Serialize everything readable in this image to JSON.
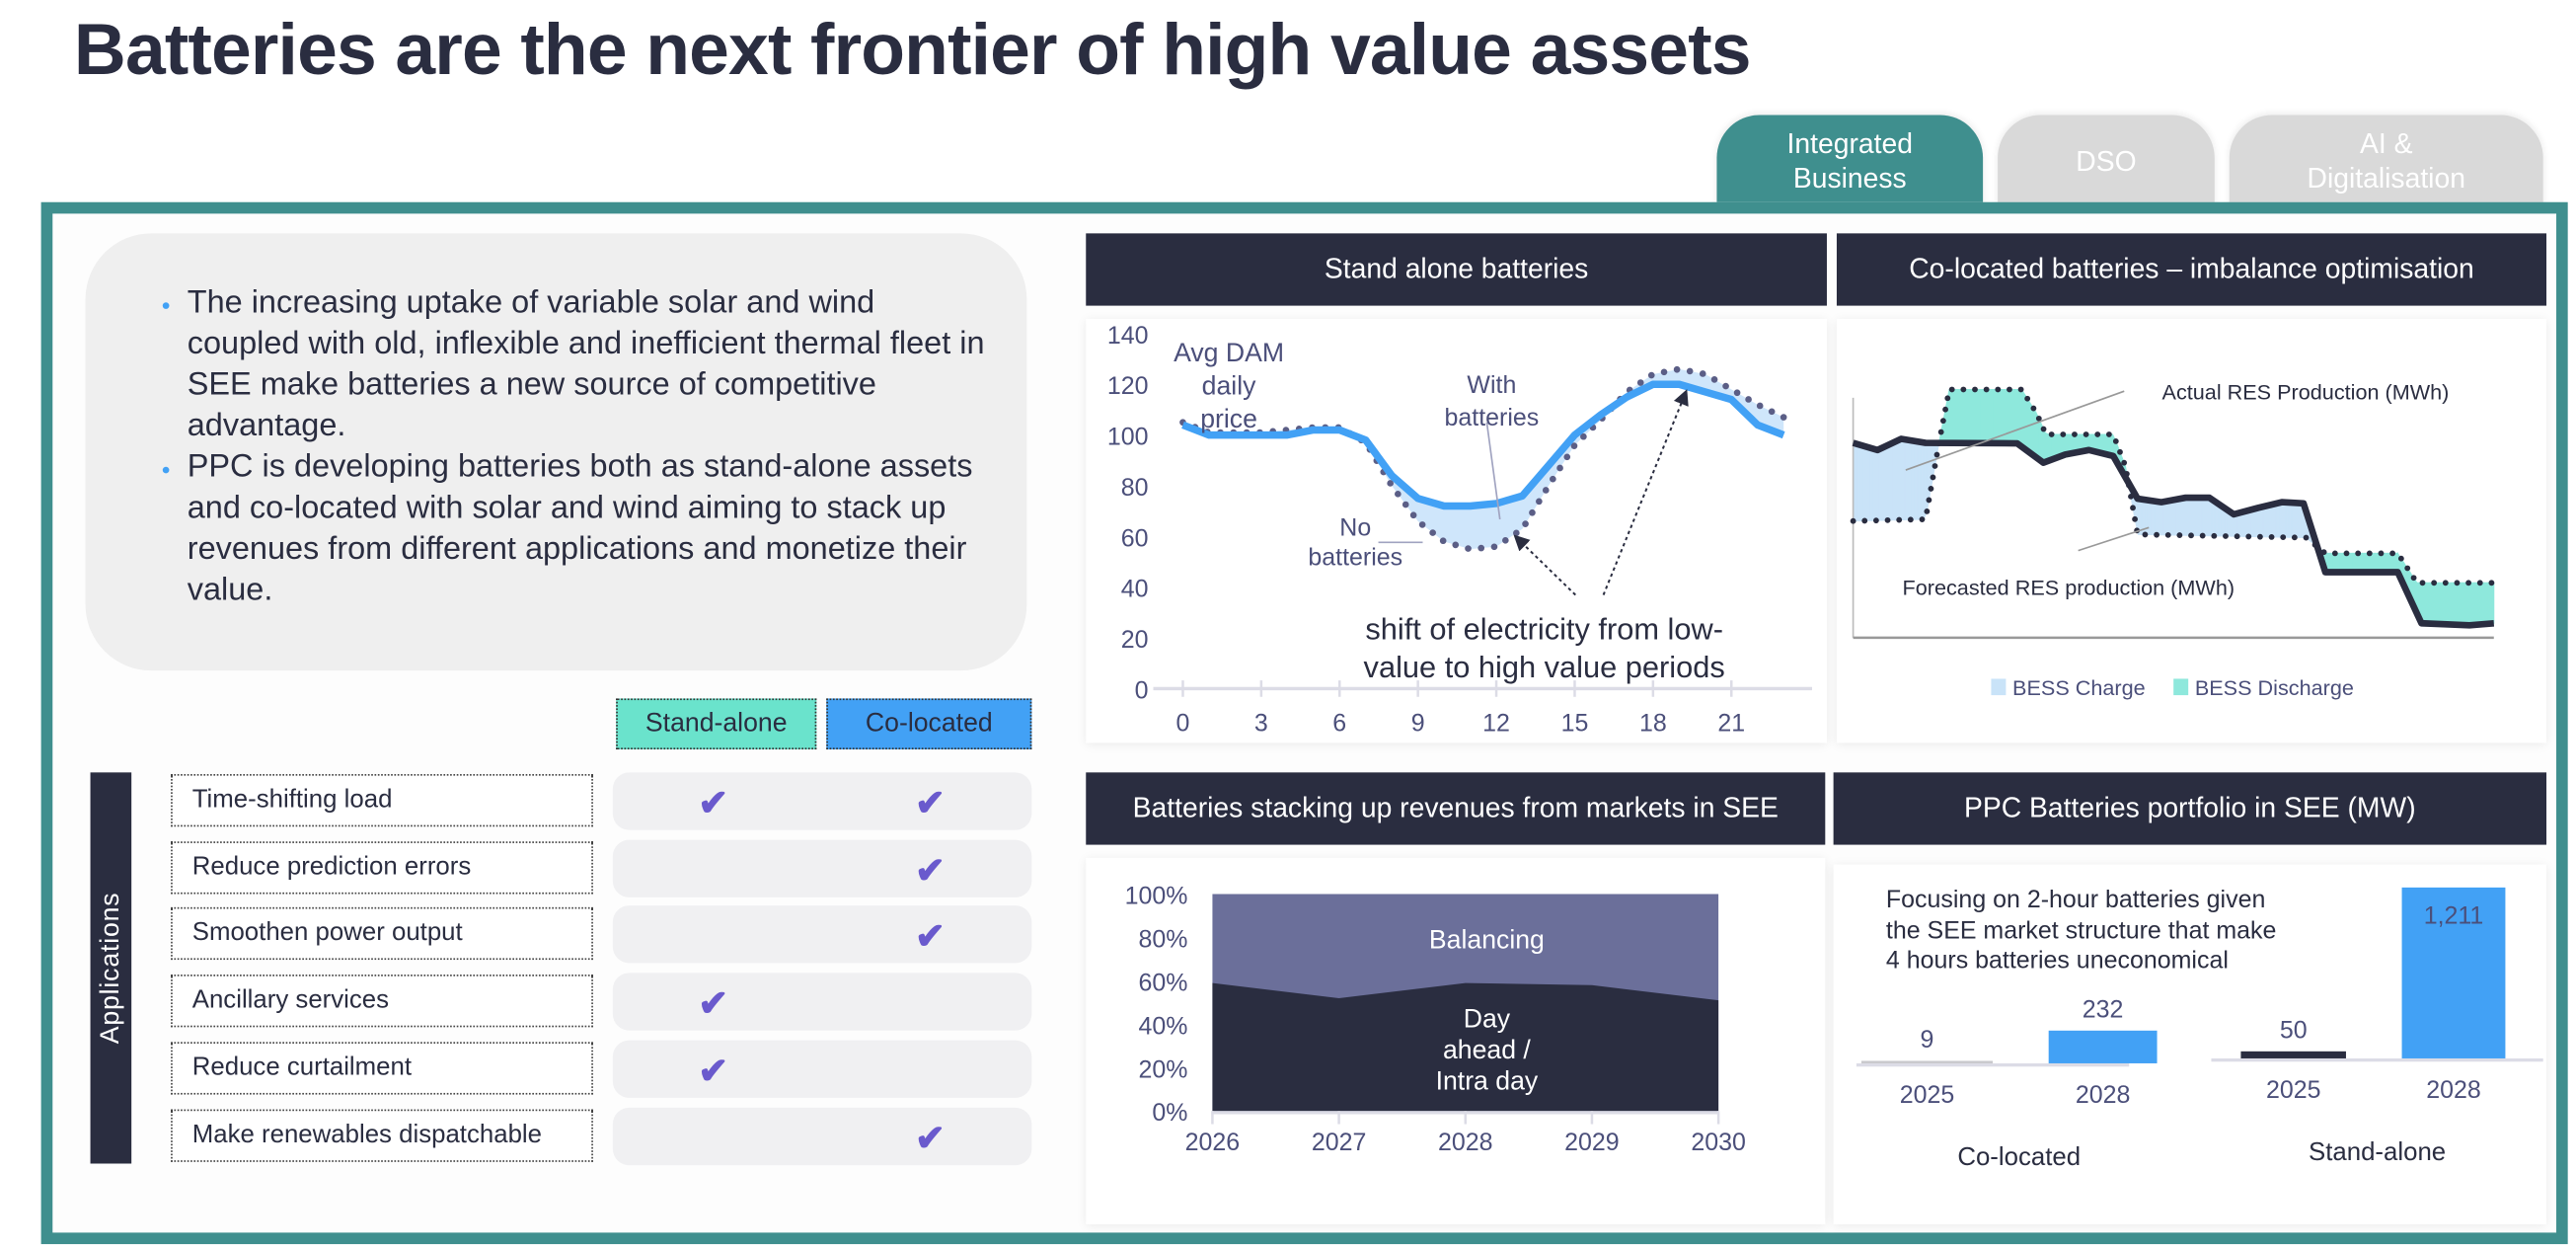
{
  "title": "Batteries are the next frontier of high value assets",
  "tabs": [
    {
      "label_line1": "Integrated",
      "label_line2": "Business",
      "active": true
    },
    {
      "label_line1": "DSO",
      "label_line2": "",
      "active": false
    },
    {
      "label_line1": "AI &",
      "label_line2": "Digitalisation",
      "active": false
    }
  ],
  "bullets": [
    "The increasing uptake of variable solar and wind coupled with old, inflexible and inefficient thermal fleet in SEE make batteries a new source of competitive advantage.",
    "PPC is developing batteries both as stand-alone assets and co-located with solar and wind aiming to stack up revenues from different applications and monetize their value."
  ],
  "applications": {
    "side_label": "Applications",
    "columns": [
      "Stand-alone",
      "Co-located"
    ],
    "colors": {
      "stand_alone": "#6ae3cc",
      "co_located": "#42a1f5",
      "check": "#6a5acd"
    },
    "check_glyph": "✔",
    "rows": [
      {
        "label": "Time-shifting load",
        "stand_alone": true,
        "co_located": true
      },
      {
        "label": "Reduce prediction errors",
        "stand_alone": false,
        "co_located": true
      },
      {
        "label": "Smoothen power output",
        "stand_alone": false,
        "co_located": true
      },
      {
        "label": "Ancillary services",
        "stand_alone": true,
        "co_located": false
      },
      {
        "label": "Reduce curtailment",
        "stand_alone": true,
        "co_located": false
      },
      {
        "label": "Make renewables dispatchable",
        "stand_alone": false,
        "co_located": true
      }
    ]
  },
  "panels": {
    "stand_alone": "Stand alone batteries",
    "co_located": "Co-located batteries – imbalance optimisation",
    "stacking": "Batteries stacking up revenues from markets in SEE",
    "portfolio": "PPC Batteries portfolio in SEE (MW)"
  },
  "chart_data": [
    {
      "type": "line",
      "title": "Stand alone batteries",
      "ylabel": "Avg DAM daily price",
      "ylabel_lines": [
        "Avg DAM",
        "daily",
        "price"
      ],
      "ylim": [
        0,
        140
      ],
      "yticks": [
        0,
        20,
        40,
        60,
        80,
        100,
        120,
        140
      ],
      "xticks": [
        0,
        3,
        6,
        9,
        12,
        15,
        18,
        21
      ],
      "x": [
        0,
        1,
        2,
        3,
        4,
        5,
        6,
        7,
        8,
        9,
        10,
        11,
        12,
        13,
        14,
        15,
        16,
        17,
        18,
        19,
        20,
        21,
        22,
        23
      ],
      "series": [
        {
          "name": "With batteries",
          "label_lines": [
            "With",
            "batteries"
          ],
          "style": "solid",
          "color": "#42a1f5",
          "values": [
            104,
            100,
            100,
            100,
            100,
            102,
            102,
            98,
            84,
            75,
            72,
            72,
            73,
            76,
            88,
            100,
            108,
            115,
            120,
            120,
            117,
            114,
            104,
            100
          ]
        },
        {
          "name": "No batteries",
          "label_lines": [
            "No",
            "batteries"
          ],
          "style": "dotted",
          "color": "#5b5e86",
          "values": [
            105,
            101,
            101,
            101,
            102,
            103,
            103,
            97,
            80,
            66,
            58,
            55,
            56,
            63,
            80,
            96,
            106,
            117,
            124,
            126,
            124,
            118,
            112,
            107
          ]
        }
      ],
      "annotation_lines": [
        "shift of electricity from low-",
        "value to high value periods"
      ]
    },
    {
      "type": "area",
      "title": "Co-located batteries – imbalance optimisation",
      "units": "relative scale 0-100 (no axis shown)",
      "series": [
        {
          "name": "Actual RES Production (MWh)",
          "style": "solid",
          "color": "#2a2d40",
          "x": [
            0,
            3.8,
            7.5,
            11.3,
            25.6,
            29.7,
            33.1,
            36.8,
            40.6,
            44.4,
            48.1,
            51.9,
            55.6,
            59.4,
            63.2,
            66.9,
            70.3,
            73.7,
            85,
            88.7,
            96.2,
            100
          ],
          "y": [
            78.5,
            75.6,
            80.1,
            78.5,
            78.3,
            70.5,
            73.8,
            75.6,
            73.2,
            56,
            54.6,
            56.4,
            56.4,
            49.7,
            52.3,
            54.6,
            54.1,
            26.4,
            26.4,
            5.8,
            5,
            5.8
          ]
        },
        {
          "name": "Forecasted RES production (MWh)",
          "style": "dotted",
          "color": "#2a2d40",
          "x": [
            0,
            11.3,
            13.5,
            15,
            26.3,
            28.6,
            30.1,
            40.6,
            42.5,
            44.4,
            70.7,
            73.7,
            85,
            88,
            98.9,
            100
          ],
          "y": [
            47,
            47.7,
            79.9,
            100,
            100,
            90.6,
            81.9,
            81.9,
            69.1,
            41.6,
            40.3,
            34,
            34,
            22.1,
            22.1,
            22.1
          ]
        }
      ],
      "legend": [
        {
          "name": "BESS Charge",
          "color": "#c9e3f8"
        },
        {
          "name": "BESS Discharge",
          "color": "#8ee8dc"
        }
      ],
      "legend_position": "bottom"
    },
    {
      "type": "area",
      "title": "Batteries stacking up revenues from markets in SEE",
      "stacked_percent": true,
      "categories": [
        "2026",
        "2027",
        "2028",
        "2029",
        "2030"
      ],
      "yticks": [
        "0%",
        "20%",
        "40%",
        "60%",
        "80%",
        "100%"
      ],
      "ylim": [
        0,
        100
      ],
      "series": [
        {
          "name": "Day ahead / Intra day",
          "label_lines": [
            "Day",
            "ahead /",
            "Intra day"
          ],
          "color": "#2a2d40",
          "values": [
            59,
            52,
            59,
            58,
            51
          ]
        },
        {
          "name": "Balancing",
          "label_lines": [
            "Balancing"
          ],
          "color": "#6b6f9a",
          "values": [
            41,
            48,
            41,
            42,
            49
          ]
        }
      ]
    },
    {
      "type": "bar",
      "title": "PPC Batteries portfolio in SEE (MW)",
      "note_lines": [
        "Focusing on 2-hour batteries given",
        "the SEE market structure that make",
        "4 hours batteries uneconomical"
      ],
      "groups": [
        {
          "name": "Co-located",
          "categories": [
            "2025",
            "2028"
          ],
          "values": [
            9,
            232
          ],
          "value_labels": [
            "9",
            "232"
          ],
          "colors": [
            "#c8c8cc",
            "#42a1f5"
          ]
        },
        {
          "name": "Stand-alone",
          "categories": [
            "2025",
            "2028"
          ],
          "values": [
            50,
            1211
          ],
          "value_labels": [
            "50",
            "1,211"
          ],
          "colors": [
            "#2a2d40",
            "#42a1f5"
          ]
        }
      ]
    }
  ]
}
